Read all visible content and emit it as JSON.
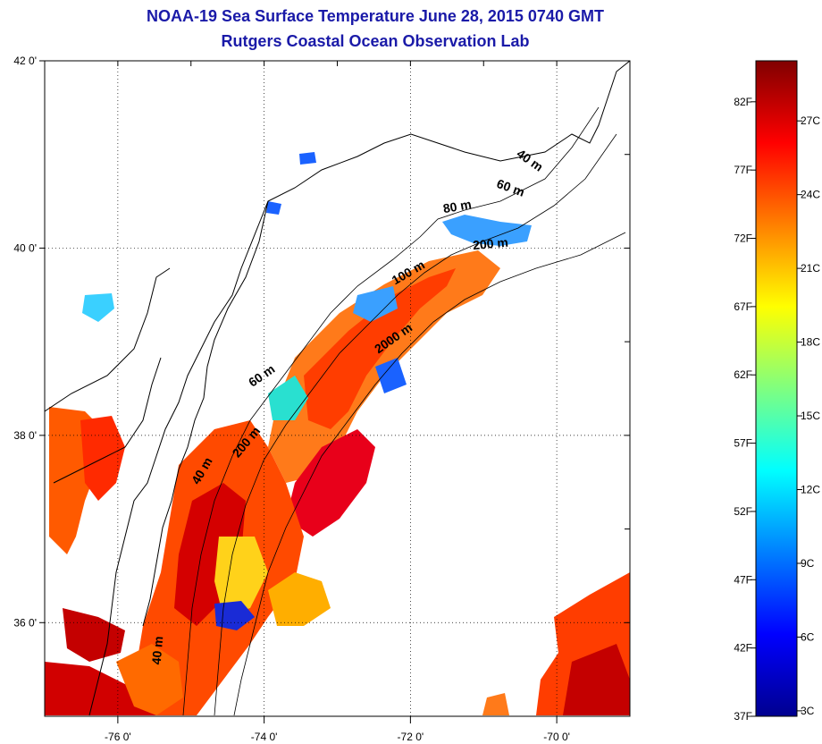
{
  "title_line1": "NOAA-19 Sea Surface Temperature June 28, 2015 0740 GMT",
  "title_line2": "Rutgers Coastal Ocean Observation Lab",
  "map": {
    "lon_range": [
      -77.0,
      -69.0
    ],
    "lat_range": [
      35.0,
      42.0
    ],
    "lon_ticks": [
      {
        "value": -76,
        "label": "-76 0'"
      },
      {
        "value": -74,
        "label": "-74 0'"
      },
      {
        "value": -72,
        "label": "-72 0'"
      },
      {
        "value": -70,
        "label": "-70 0'"
      }
    ],
    "lat_ticks": [
      {
        "value": 42,
        "label": "42 0'"
      },
      {
        "value": 40,
        "label": "40 0'"
      },
      {
        "value": 38,
        "label": "38 0'"
      },
      {
        "value": 36,
        "label": "36 0'"
      }
    ],
    "grid": "dotted",
    "contour_labels": [
      {
        "text": "40 m",
        "lon": -70.4,
        "lat": 40.9,
        "angle": 35
      },
      {
        "text": "60 m",
        "lon": -70.65,
        "lat": 40.6,
        "angle": 20
      },
      {
        "text": "80 m",
        "lon": -71.35,
        "lat": 40.4,
        "angle": -10
      },
      {
        "text": "200 m",
        "lon": -70.9,
        "lat": 40.0,
        "angle": -5
      },
      {
        "text": "100 m",
        "lon": -72.0,
        "lat": 39.7,
        "angle": -30
      },
      {
        "text": "2000 m",
        "lon": -72.2,
        "lat": 39.0,
        "angle": -35
      },
      {
        "text": "60 m",
        "lon": -74.0,
        "lat": 38.6,
        "angle": -35
      },
      {
        "text": "200 m",
        "lon": -74.2,
        "lat": 37.9,
        "angle": -50
      },
      {
        "text": "40 m",
        "lon": -74.8,
        "lat": 37.6,
        "angle": -60
      },
      {
        "text": "40 m",
        "lon": -75.4,
        "lat": 35.7,
        "angle": -85
      }
    ],
    "colors": {
      "land": "#ffffff",
      "coastline": "#000000",
      "title": "#1a1aa8"
    }
  },
  "colorbar": {
    "colormap": "jet",
    "range_F": [
      37,
      85
    ],
    "f_ticks": [
      {
        "value": 82,
        "label": "82F"
      },
      {
        "value": 77,
        "label": "77F"
      },
      {
        "value": 72,
        "label": "72F"
      },
      {
        "value": 67,
        "label": "67F"
      },
      {
        "value": 62,
        "label": "62F"
      },
      {
        "value": 57,
        "label": "57F"
      },
      {
        "value": 52,
        "label": "52F"
      },
      {
        "value": 47,
        "label": "47F"
      },
      {
        "value": 42,
        "label": "42F"
      },
      {
        "value": 37,
        "label": "37F"
      }
    ],
    "c_ticks": [
      {
        "value": 27,
        "label": "27C"
      },
      {
        "value": 24,
        "label": "24C"
      },
      {
        "value": 21,
        "label": "21C"
      },
      {
        "value": 18,
        "label": "18C"
      },
      {
        "value": 15,
        "label": "15C"
      },
      {
        "value": 12,
        "label": "12C"
      },
      {
        "value": 9,
        "label": "9C"
      },
      {
        "value": 6,
        "label": "6C"
      },
      {
        "value": 3,
        "label": "3C"
      }
    ]
  }
}
